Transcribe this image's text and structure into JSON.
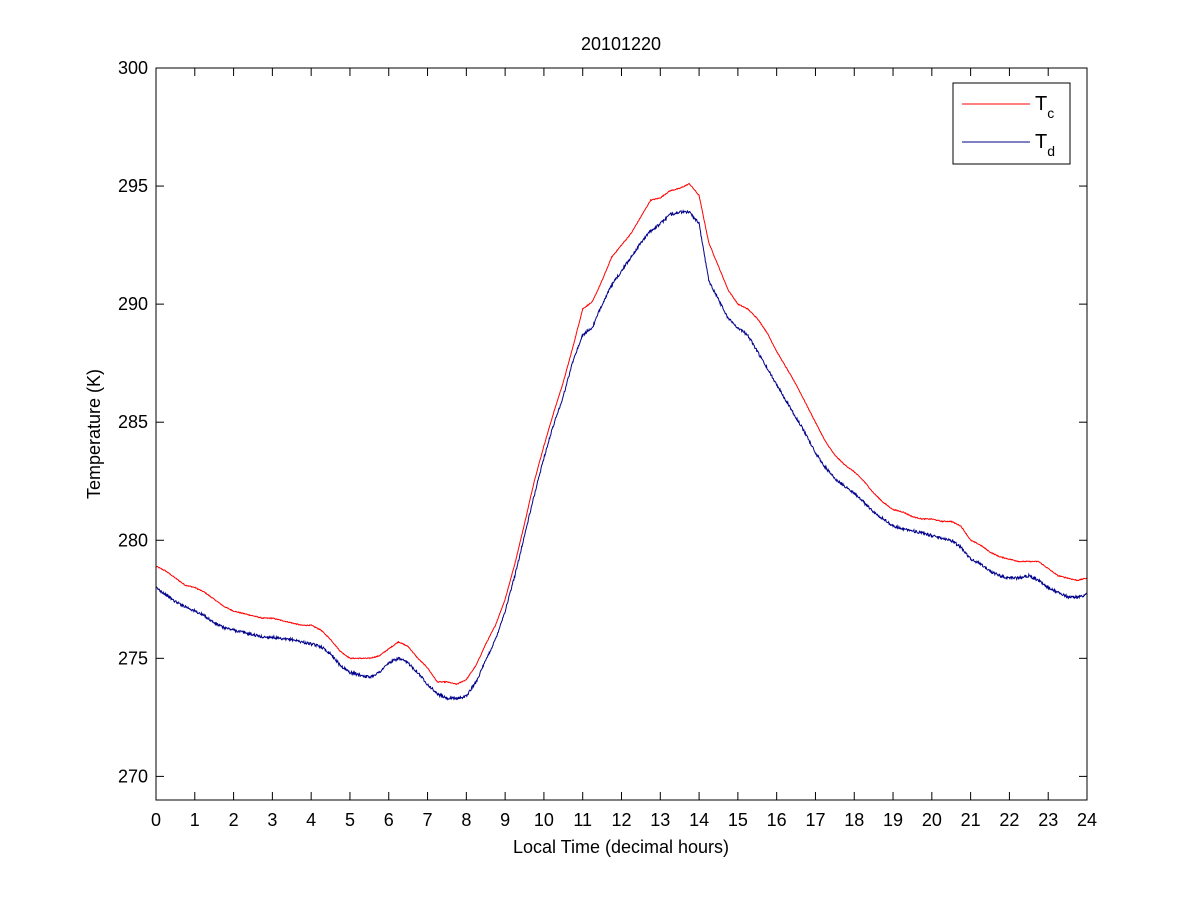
{
  "chart_data": {
    "type": "line",
    "title": "20101220",
    "xlabel": "Local Time (decimal hours)",
    "ylabel": "Temperature (K)",
    "xlim": [
      0,
      24
    ],
    "ylim": [
      269,
      300
    ],
    "xticks": [
      0,
      1,
      2,
      3,
      4,
      5,
      6,
      7,
      8,
      9,
      10,
      11,
      12,
      13,
      14,
      15,
      16,
      17,
      18,
      19,
      20,
      21,
      22,
      23,
      24
    ],
    "yticks": [
      270,
      275,
      280,
      285,
      290,
      295,
      300
    ],
    "grid": false,
    "legend_position": "top-right",
    "series": [
      {
        "name": "T",
        "name_sub": "c",
        "color": "#ff0000",
        "x": [
          0,
          0.25,
          0.5,
          0.75,
          1,
          1.25,
          1.5,
          1.75,
          2,
          2.25,
          2.5,
          2.75,
          3,
          3.25,
          3.5,
          3.75,
          4,
          4.25,
          4.5,
          4.75,
          5,
          5.25,
          5.5,
          5.75,
          6,
          6.25,
          6.5,
          6.75,
          7,
          7.25,
          7.5,
          7.75,
          8,
          8.25,
          8.5,
          8.75,
          9,
          9.25,
          9.5,
          9.75,
          10,
          10.25,
          10.5,
          10.75,
          11,
          11.25,
          11.5,
          11.75,
          12,
          12.25,
          12.5,
          12.75,
          13,
          13.25,
          13.5,
          13.75,
          14,
          14.25,
          14.5,
          14.75,
          15,
          15.25,
          15.5,
          15.75,
          16,
          16.25,
          16.5,
          16.75,
          17,
          17.25,
          17.5,
          17.75,
          18,
          18.25,
          18.5,
          18.75,
          19,
          19.25,
          19.5,
          19.75,
          20,
          20.25,
          20.5,
          20.75,
          21,
          21.25,
          21.5,
          21.75,
          22,
          22.25,
          22.5,
          22.75,
          23,
          23.25,
          23.5,
          23.75,
          24
        ],
        "values": [
          278.9,
          278.7,
          278.4,
          278.1,
          278.0,
          277.8,
          277.5,
          277.2,
          277.0,
          276.9,
          276.8,
          276.7,
          276.7,
          276.6,
          276.5,
          276.4,
          276.4,
          276.2,
          275.8,
          275.3,
          275.0,
          275.0,
          275.0,
          275.1,
          275.4,
          275.7,
          275.5,
          275.0,
          274.6,
          274.0,
          274.0,
          273.9,
          274.1,
          274.7,
          275.6,
          276.4,
          277.5,
          279.0,
          280.7,
          282.5,
          284.0,
          285.4,
          286.7,
          288.2,
          289.8,
          290.1,
          291.0,
          292.0,
          292.5,
          293.0,
          293.7,
          294.4,
          294.5,
          294.8,
          294.9,
          295.1,
          294.6,
          292.6,
          291.6,
          290.6,
          290.0,
          289.8,
          289.4,
          288.8,
          288.0,
          287.3,
          286.6,
          285.8,
          285.0,
          284.2,
          283.6,
          283.2,
          282.9,
          282.5,
          282.0,
          281.6,
          281.3,
          281.2,
          281.0,
          280.9,
          280.9,
          280.8,
          280.8,
          280.6,
          280.0,
          279.8,
          279.5,
          279.3,
          279.2,
          279.1,
          279.1,
          279.1,
          278.8,
          278.5,
          278.4,
          278.3,
          278.4
        ]
      },
      {
        "name": "T",
        "name_sub": "d",
        "color": "#00008b",
        "x": [
          0,
          0.25,
          0.5,
          0.75,
          1,
          1.25,
          1.5,
          1.75,
          2,
          2.25,
          2.5,
          2.75,
          3,
          3.25,
          3.5,
          3.75,
          4,
          4.25,
          4.5,
          4.75,
          5,
          5.25,
          5.5,
          5.75,
          6,
          6.25,
          6.5,
          6.75,
          7,
          7.25,
          7.5,
          7.75,
          8,
          8.25,
          8.5,
          8.75,
          9,
          9.25,
          9.5,
          9.75,
          10,
          10.25,
          10.5,
          10.75,
          11,
          11.25,
          11.5,
          11.75,
          12,
          12.25,
          12.5,
          12.75,
          13,
          13.25,
          13.5,
          13.75,
          14,
          14.25,
          14.5,
          14.75,
          15,
          15.25,
          15.5,
          15.75,
          16,
          16.25,
          16.5,
          16.75,
          17,
          17.25,
          17.5,
          17.75,
          18,
          18.25,
          18.5,
          18.75,
          19,
          19.25,
          19.5,
          19.75,
          20,
          20.25,
          20.5,
          20.75,
          21,
          21.25,
          21.5,
          21.75,
          22,
          22.25,
          22.5,
          22.75,
          23,
          23.25,
          23.5,
          23.75,
          24
        ],
        "values": [
          278.0,
          277.7,
          277.4,
          277.2,
          277.0,
          276.8,
          276.5,
          276.3,
          276.2,
          276.1,
          276.0,
          275.9,
          275.9,
          275.8,
          275.8,
          275.7,
          275.6,
          275.5,
          275.2,
          274.7,
          274.4,
          274.3,
          274.2,
          274.4,
          274.8,
          275.0,
          274.8,
          274.4,
          273.9,
          273.5,
          273.3,
          273.3,
          273.4,
          274.0,
          274.9,
          275.8,
          277.0,
          278.5,
          280.2,
          281.9,
          283.5,
          284.9,
          286.1,
          287.6,
          288.7,
          289.0,
          290.0,
          290.8,
          291.4,
          292.0,
          292.6,
          293.1,
          293.4,
          293.8,
          293.9,
          293.9,
          293.4,
          291.0,
          290.2,
          289.4,
          289.0,
          288.7,
          288.0,
          287.3,
          286.6,
          285.9,
          285.2,
          284.5,
          283.7,
          283.1,
          282.6,
          282.3,
          282.0,
          281.6,
          281.2,
          280.9,
          280.6,
          280.5,
          280.4,
          280.3,
          280.2,
          280.1,
          280.0,
          279.7,
          279.2,
          279.0,
          278.7,
          278.5,
          278.4,
          278.4,
          278.5,
          278.3,
          278.0,
          277.8,
          277.6,
          277.6,
          277.7
        ]
      }
    ]
  }
}
